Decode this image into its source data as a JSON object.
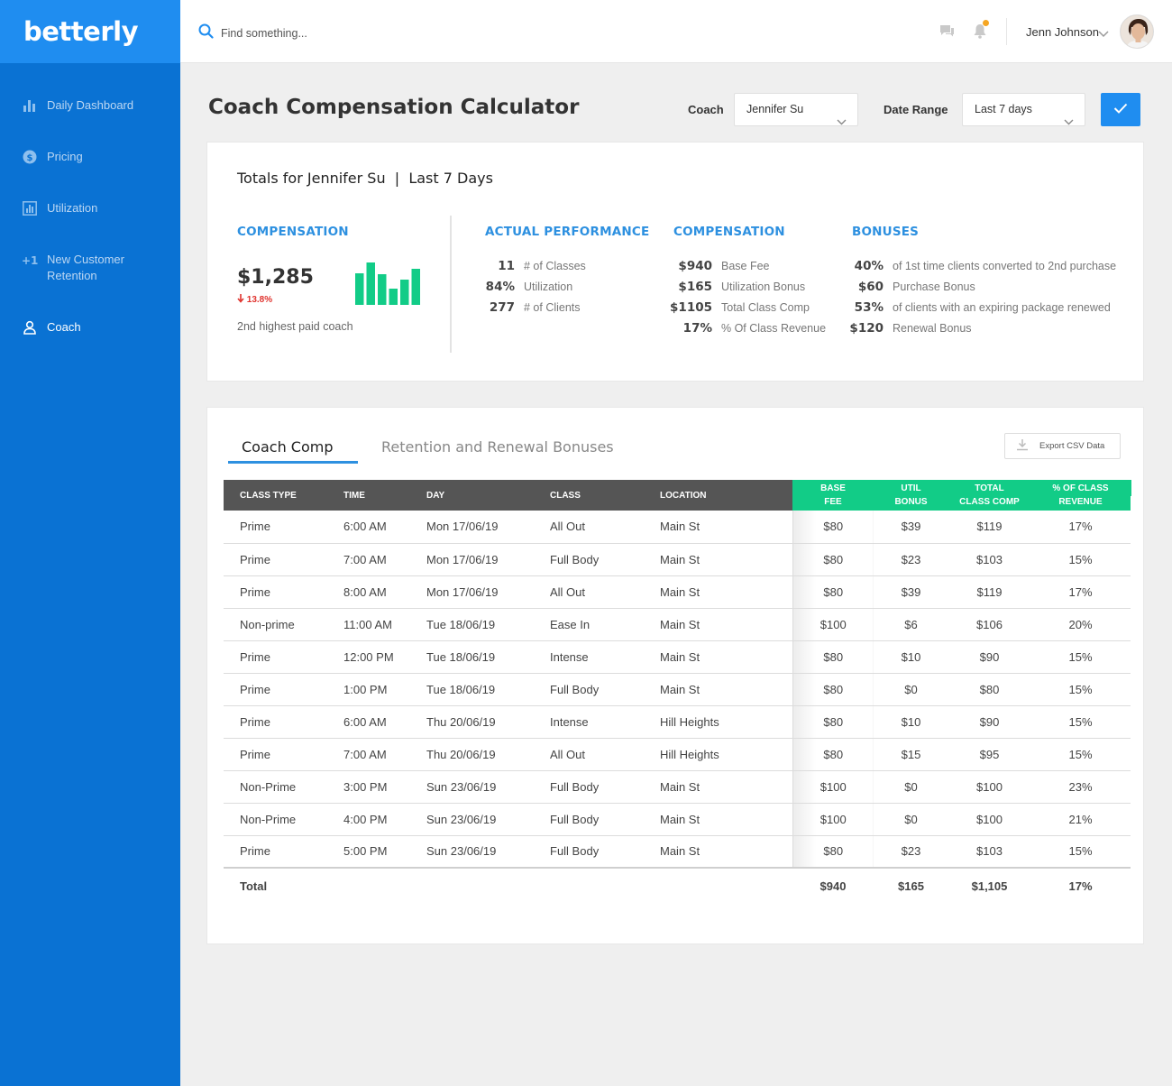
{
  "app": {
    "logo": "betterly"
  },
  "sidebar": {
    "items": [
      {
        "label": "Daily Dashboard",
        "icon": "bar-chart-icon"
      },
      {
        "label": "Pricing",
        "icon": "dollar-circle-icon"
      },
      {
        "label": "Utilization",
        "icon": "chart-box-icon"
      },
      {
        "label": "New Customer Retention",
        "icon": "plus-one-icon"
      },
      {
        "label": "Coach",
        "icon": "user-icon",
        "active": true
      }
    ]
  },
  "topbar": {
    "search_placeholder": "Find something...",
    "user_name": "Jenn Johnson"
  },
  "header": {
    "title": "Coach Compensation Calculator",
    "coach_label": "Coach",
    "coach_value": "Jennifer Su",
    "date_label": "Date Range",
    "date_value": "Last 7 days"
  },
  "summary": {
    "title": "Totals for Jennifer Su  |  Last 7 Days",
    "comp_heading": "COMPENSATION",
    "comp_total": "$1,285",
    "comp_change": "13.8%",
    "comp_note": "2nd highest paid coach",
    "performance_heading": "ACTUAL PERFORMANCE",
    "performance": [
      {
        "value": "11",
        "label": "# of Classes"
      },
      {
        "value": "84%",
        "label": "Utilization"
      },
      {
        "value": "277",
        "label": "# of Clients"
      }
    ],
    "compensation_heading": "COMPENSATION",
    "compensation": [
      {
        "value": "$940",
        "label": "Base Fee"
      },
      {
        "value": "$165",
        "label": "Utilization Bonus"
      },
      {
        "value": "$1105",
        "label": "Total Class Comp"
      },
      {
        "value": "17%",
        "label": "% Of Class Revenue"
      }
    ],
    "bonuses_heading": "BONUSES",
    "bonuses": [
      {
        "value": "40%",
        "label": "of 1st time clients converted to 2nd purchase"
      },
      {
        "value": "$60",
        "label": "Purchase Bonus"
      },
      {
        "value": "53%",
        "label": "of clients with an expiring package renewed"
      },
      {
        "value": "$120",
        "label": "Renewal Bonus"
      }
    ]
  },
  "tabs": [
    {
      "label": "Coach Comp",
      "active": true
    },
    {
      "label": "Retention and Renewal Bonuses",
      "active": false
    }
  ],
  "export_label": "Export CSV Data",
  "table": {
    "headers": [
      "CLASS TYPE",
      "TIME",
      "DAY",
      "CLASS",
      "LOCATION"
    ],
    "comp_headers": [
      {
        "line1": "BASE",
        "line2": "FEE"
      },
      {
        "line1": "UTIL",
        "line2": "BONUS"
      },
      {
        "line1": "TOTAL",
        "line2": "CLASS COMP"
      },
      {
        "line1": "% OF CLASS",
        "line2": "REVENUE"
      }
    ],
    "rows": [
      [
        "Prime",
        "6:00 AM",
        "Mon 17/06/19",
        "All Out",
        "Main St",
        "$80",
        "$39",
        "$119",
        "17%"
      ],
      [
        "Prime",
        "7:00 AM",
        "Mon 17/06/19",
        "Full Body",
        "Main St",
        "$80",
        "$23",
        "$103",
        "15%"
      ],
      [
        "Prime",
        "8:00 AM",
        "Mon 17/06/19",
        "All Out",
        "Main St",
        "$80",
        "$39",
        "$119",
        "17%"
      ],
      [
        "Non-prime",
        "11:00 AM",
        "Tue 18/06/19",
        "Ease In",
        "Main St",
        "$100",
        "$6",
        "$106",
        "20%"
      ],
      [
        "Prime",
        "12:00 PM",
        "Tue 18/06/19",
        "Intense",
        "Main St",
        "$80",
        "$10",
        "$90",
        "15%"
      ],
      [
        "Prime",
        "1:00 PM",
        "Tue 18/06/19",
        "Full Body",
        "Main St",
        "$80",
        "$0",
        "$80",
        "15%"
      ],
      [
        "Prime",
        "6:00 AM",
        "Thu 20/06/19",
        "Intense",
        "Hill Heights",
        "$80",
        "$10",
        "$90",
        "15%"
      ],
      [
        "Prime",
        "7:00 AM",
        "Thu 20/06/19",
        "All Out",
        "Hill Heights",
        "$80",
        "$15",
        "$95",
        "15%"
      ],
      [
        "Non-Prime",
        "3:00 PM",
        "Sun 23/06/19",
        "Full Body",
        "Main St",
        "$100",
        "$0",
        "$100",
        "23%"
      ],
      [
        "Non-Prime",
        "4:00 PM",
        "Sun 23/06/19",
        "Full Body",
        "Main St",
        "$100",
        "$0",
        "$100",
        "21%"
      ],
      [
        "Prime",
        "5:00 PM",
        "Sun 23/06/19",
        "Full Body",
        "Main St",
        "$80",
        "$23",
        "$103",
        "15%"
      ]
    ],
    "total": {
      "label": "Total",
      "values": [
        "$940",
        "$165",
        "$1,105",
        "17%"
      ]
    }
  },
  "colors": {
    "sidebar": "#0a72d3",
    "logo_bg": "#1f8df0",
    "accent": "#2d90e0",
    "green": "#12cc87",
    "negative": "#e0342f"
  }
}
